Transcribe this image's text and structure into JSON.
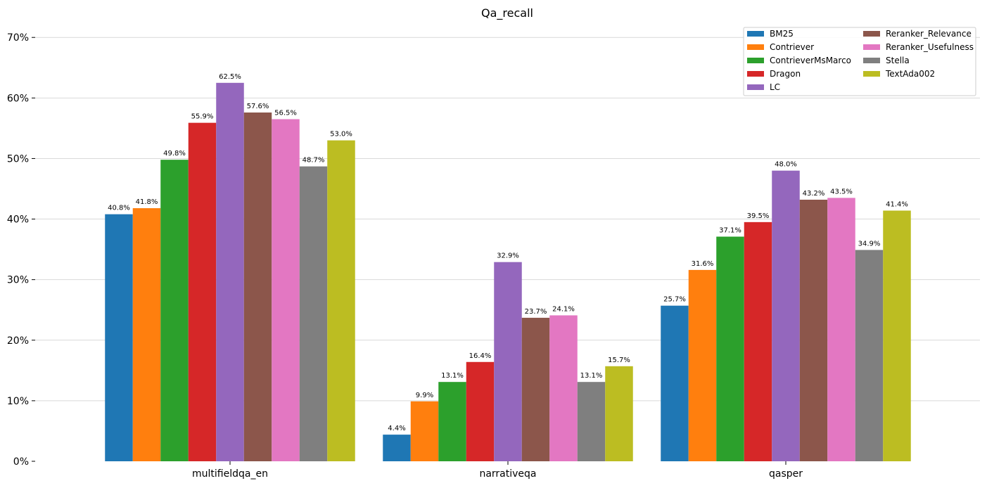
{
  "chart_data": {
    "type": "bar",
    "title": "Qa_recall",
    "xlabel": "",
    "ylabel": "",
    "categories": [
      "multifieldqa_en",
      "narrativeqa",
      "qasper"
    ],
    "ylim": [
      0,
      72
    ],
    "y_ticks": [
      0,
      10,
      20,
      30,
      40,
      50,
      60,
      70
    ],
    "y_tick_format": "{v}%",
    "grid": "horizontal",
    "legend_position": "top-right",
    "legend_columns": 2,
    "series": [
      {
        "name": "BM25",
        "color": "#1f77b4",
        "values": [
          40.8,
          4.4,
          25.7
        ],
        "labels": [
          "40.8%",
          "4.4%",
          "25.7%"
        ]
      },
      {
        "name": "Contriever",
        "color": "#ff7f0e",
        "values": [
          41.8,
          9.9,
          31.6
        ],
        "labels": [
          "41.8%",
          "9.9%",
          "31.6%"
        ]
      },
      {
        "name": "ContrieverMsMarco",
        "color": "#2ca02c",
        "values": [
          49.8,
          13.1,
          37.1
        ],
        "labels": [
          "49.8%",
          "13.1%",
          "37.1%"
        ]
      },
      {
        "name": "Dragon",
        "color": "#d62728",
        "values": [
          55.9,
          16.4,
          39.5
        ],
        "labels": [
          "55.9%",
          "16.4%",
          "39.5%"
        ]
      },
      {
        "name": "LC",
        "color": "#9467bd",
        "values": [
          62.5,
          32.9,
          48.0
        ],
        "labels": [
          "62.5%",
          "32.9%",
          "48.0%"
        ]
      },
      {
        "name": "Reranker_Relevance",
        "color": "#8c564b",
        "values": [
          57.6,
          23.7,
          43.2
        ],
        "labels": [
          "57.6%",
          "23.7%",
          "43.2%"
        ]
      },
      {
        "name": "Reranker_Usefulness",
        "color": "#e377c2",
        "values": [
          56.5,
          24.1,
          43.5
        ],
        "labels": [
          "56.5%",
          "24.1%",
          "43.5%"
        ]
      },
      {
        "name": "Stella",
        "color": "#7f7f7f",
        "values": [
          48.7,
          13.1,
          34.9
        ],
        "labels": [
          "48.7%",
          "13.1%",
          "34.9%"
        ]
      },
      {
        "name": "TextAda002",
        "color": "#bcbd22",
        "values": [
          53.0,
          15.7,
          41.4
        ],
        "labels": [
          "53.0%",
          "15.7%",
          "41.4%"
        ]
      }
    ]
  }
}
